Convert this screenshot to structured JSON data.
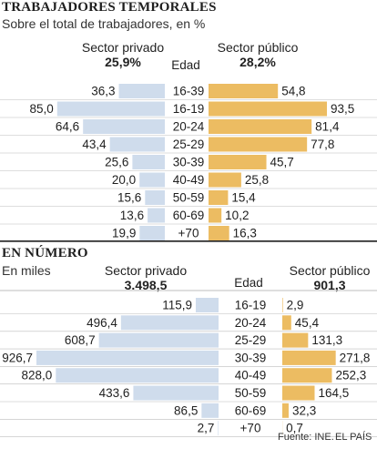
{
  "colors": {
    "private": "#cfdcec",
    "public": "#ecbc62",
    "divider": "#222222",
    "gridline": "#bdbdbd"
  },
  "section1": {
    "title": "TRABAJADORES TEMPORALES",
    "subtitle": "Sobre el total de trabajadores, en %",
    "left_header": "Sector privado",
    "left_total": "25,9%",
    "right_header": "Sector público",
    "right_total": "28,2%",
    "age_header": "Edad"
  },
  "section2": {
    "title": "EN NÚMERO",
    "subtitle": "En miles",
    "left_header": "Sector privado",
    "left_total": "3.498,5",
    "right_header": "Sector público",
    "right_total": "901,3",
    "age_header": "Edad"
  },
  "source": "Fuente: INE.",
  "brand": "EL PAÍS",
  "chart_data": [
    {
      "type": "bar",
      "orientation": "horizontal-diverging",
      "title": "TRABAJADORES TEMPORALES",
      "subtitle": "Sobre el total de trabajadores, en %",
      "categories": [
        "16-39",
        "16-19",
        "20-24",
        "25-29",
        "30-39",
        "40-49",
        "50-59",
        "60-69",
        "+70"
      ],
      "series": [
        {
          "name": "Sector privado",
          "total": "25,9%",
          "values": [
            36.3,
            85.0,
            64.6,
            43.4,
            25.6,
            20.0,
            15.6,
            13.6,
            19.9
          ],
          "labels": [
            "36,3",
            "85,0",
            "64,6",
            "43,4",
            "25,6",
            "20,0",
            "15,6",
            "13,6",
            "19,9"
          ]
        },
        {
          "name": "Sector público",
          "total": "28,2%",
          "values": [
            54.8,
            93.5,
            81.4,
            77.8,
            45.7,
            25.8,
            15.4,
            10.2,
            16.3
          ],
          "labels": [
            "54,8",
            "93,5",
            "81,4",
            "77,8",
            "45,7",
            "25,8",
            "15,4",
            "10,2",
            "16,3"
          ]
        }
      ]
    },
    {
      "type": "bar",
      "orientation": "horizontal-diverging",
      "title": "EN NÚMERO",
      "subtitle": "En miles",
      "categories": [
        "16-19",
        "20-24",
        "25-29",
        "30-39",
        "40-49",
        "50-59",
        "60-69",
        "+70"
      ],
      "series": [
        {
          "name": "Sector privado",
          "total": "3.498,5",
          "values": [
            115.9,
            496.4,
            608.7,
            926.7,
            828.0,
            433.6,
            86.5,
            2.7
          ],
          "labels": [
            "115,9",
            "496,4",
            "608,7",
            "926,7",
            "828,0",
            "433,6",
            "86,5",
            "2,7"
          ]
        },
        {
          "name": "Sector público",
          "total": "901,3",
          "values": [
            2.9,
            45.4,
            131.3,
            271.8,
            252.3,
            164.5,
            32.3,
            0.7
          ],
          "labels": [
            "2,9",
            "45,4",
            "131,3",
            "271,8",
            "252,3",
            "164,5",
            "32,3",
            "0,7"
          ]
        }
      ]
    }
  ]
}
